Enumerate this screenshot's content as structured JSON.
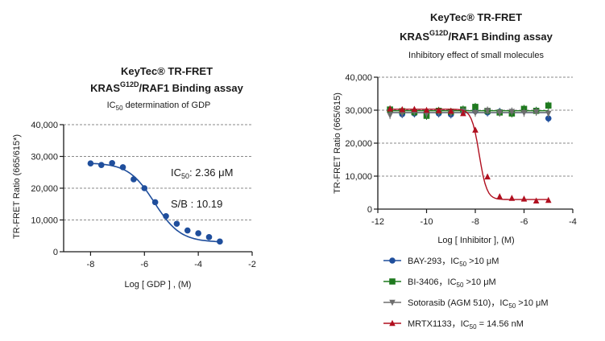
{
  "chart_data": [
    {
      "type": "scatter",
      "title_line1": "KeyTec® TR-FRET",
      "title_line2": "KRAS",
      "title_line2_sup": "G12D",
      "title_line2_rest": "/RAF1 Binding assay",
      "subtitle": "IC",
      "subtitle_sub": "50",
      "subtitle_rest": " determination of GDP",
      "xlabel": "Log [ GDP ] , (M)",
      "ylabel": "TR-FRET Ratio (665/615*)",
      "xlim": [
        -9,
        -2
      ],
      "ylim": [
        0,
        40000
      ],
      "xticks": [
        -8,
        -6,
        -4,
        -2
      ],
      "xtick_labels": [
        "-8",
        "-6",
        "-4",
        "-2"
      ],
      "yticks": [
        0,
        10000,
        20000,
        30000,
        40000
      ],
      "ytick_labels": [
        "0",
        "10,000",
        "20,000",
        "30,000",
        "40,000"
      ],
      "grid": "horizontal dashed",
      "annotation_ic50_prefix": "IC",
      "annotation_ic50_sub": "50",
      "annotation_ic50_value": ": 2.36 μM",
      "annotation_sb": "S/B : 10.19",
      "series": [
        {
          "color": "#1f4e9c",
          "marker": "circle",
          "x": [
            -8.0,
            -7.6,
            -7.2,
            -6.8,
            -6.4,
            -6.0,
            -5.6,
            -5.2,
            -4.8,
            -4.4,
            -4.0,
            -3.6,
            -3.2
          ],
          "y": [
            27800,
            27300,
            27900,
            26600,
            22800,
            20000,
            15600,
            11200,
            8800,
            6700,
            5800,
            4600,
            3200
          ]
        }
      ],
      "fit": {
        "top": 28000,
        "bottom": 3000,
        "log_ic50": -5.63,
        "hill": 0.9
      }
    },
    {
      "type": "scatter",
      "title_line1": "KeyTec® TR-FRET",
      "title_line2": "KRAS",
      "title_line2_sup": "G12D",
      "title_line2_rest": "/RAF1 Binding assay",
      "subtitle": "Inhibitory effect of small molecules",
      "xlabel": "Log [ Inhibitor ], (M)",
      "ylabel": "TR-FRET Ratio (665/615)",
      "xlim": [
        -12,
        -4
      ],
      "ylim": [
        0,
        40000
      ],
      "xticks": [
        -12,
        -10,
        -8,
        -6,
        -4
      ],
      "xtick_labels": [
        "-12",
        "-10",
        "-8",
        "-6",
        "-4"
      ],
      "yticks": [
        0,
        10000,
        20000,
        30000,
        40000
      ],
      "ytick_labels": [
        "0",
        "10,000",
        "20,000",
        "30,000",
        "40,000"
      ],
      "grid": "horizontal dashed",
      "legend_position": "bottom",
      "series": [
        {
          "name": "BAY-293，IC",
          "name_sub": "50",
          "name_rest": " >10 μM",
          "color": "#1f4e9c",
          "marker": "circle",
          "x": [
            -11.5,
            -11.0,
            -10.5,
            -10.0,
            -9.5,
            -9.0,
            -8.5,
            -8.0,
            -7.5,
            -7.0,
            -6.5,
            -6.0,
            -5.5,
            -5.0
          ],
          "y": [
            30000,
            28800,
            29000,
            29300,
            29000,
            28700,
            29600,
            29700,
            29300,
            29500,
            29400,
            30000,
            29800,
            27500
          ]
        },
        {
          "name": "BI-3406，IC",
          "name_sub": "50",
          "name_rest": " >10 μM",
          "color": "#1f7a1f",
          "marker": "square",
          "x": [
            -11.5,
            -11.0,
            -10.5,
            -10.0,
            -9.5,
            -9.0,
            -8.5,
            -8.0,
            -7.5,
            -7.0,
            -6.5,
            -6.0,
            -5.5,
            -5.0
          ],
          "y": [
            30200,
            29700,
            29400,
            28300,
            29800,
            29500,
            30200,
            31000,
            29800,
            29300,
            29000,
            30400,
            29800,
            31400
          ]
        },
        {
          "name": "Sotorasib (AGM 510)，IC",
          "name_sub": "50",
          "name_rest": " >10 μM",
          "color": "#6e6e6e",
          "marker": "triangle-down",
          "x": [
            -11.5,
            -11.0,
            -10.5,
            -10.0,
            -9.5,
            -9.0,
            -8.5,
            -8.0,
            -7.5,
            -7.0,
            -6.5,
            -6.0,
            -5.5,
            -5.0
          ],
          "y": [
            28500,
            29000,
            29600,
            28900,
            29400,
            29100,
            29700,
            29200,
            29900,
            29300,
            29600,
            29200,
            29500,
            29000
          ]
        },
        {
          "name": "MRTX1133，IC",
          "name_sub": "50",
          "name_rest": " = 14.56 nM",
          "color": "#b00f1f",
          "marker": "triangle-up",
          "x": [
            -11.5,
            -11.0,
            -10.5,
            -10.0,
            -9.5,
            -9.0,
            -8.5,
            -8.0,
            -7.5,
            -7.0,
            -6.5,
            -6.0,
            -5.5,
            -5.0
          ],
          "y": [
            30400,
            30200,
            30300,
            30000,
            29900,
            29700,
            29000,
            24000,
            9800,
            3800,
            3300,
            3100,
            2500,
            2700
          ]
        }
      ],
      "fit_mrtx": {
        "top": 30300,
        "bottom": 2900,
        "log_ic50": -7.84,
        "hill": 2.8
      }
    }
  ]
}
